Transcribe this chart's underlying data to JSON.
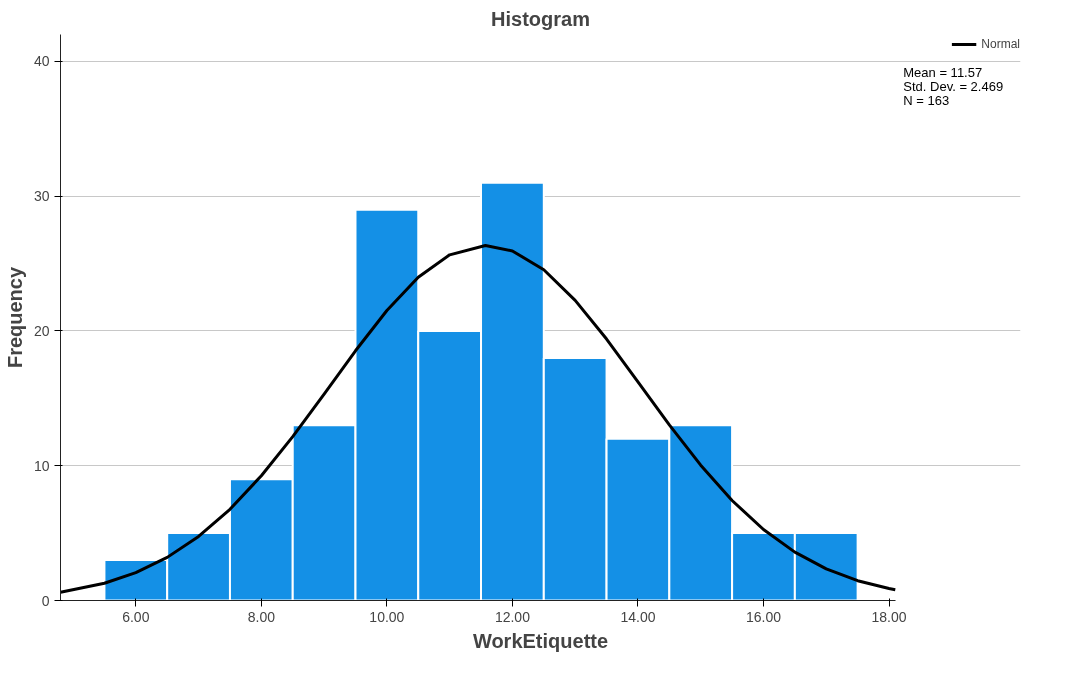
{
  "chart_data": {
    "type": "histogram",
    "title": "Histogram",
    "xlabel": "WorkEtiquette",
    "ylabel": "Frequency",
    "bins": [
      5.5,
      6.5,
      7.5,
      8.5,
      9.5,
      10.5,
      11.5,
      12.5,
      13.5,
      14.5,
      15.5,
      16.5,
      17.5
    ],
    "values": [
      3,
      5,
      9,
      13,
      29,
      20,
      31,
      18,
      12,
      13,
      5,
      5
    ],
    "color": "#1490e6",
    "series": [
      {
        "type": "line",
        "name": "Normal",
        "color": "#000000",
        "x": [
          4.8,
          5.5,
          6,
          6.5,
          7,
          7.5,
          8,
          8.5,
          9,
          9.5,
          10,
          10.5,
          11,
          11.57,
          12,
          12.5,
          13,
          13.5,
          14,
          14.5,
          15,
          15.5,
          16,
          16.5,
          17,
          17.5,
          18,
          18.1
        ],
        "values": [
          0.61,
          1.28,
          2.07,
          3.2,
          4.75,
          6.77,
          9.26,
          12.16,
          15.32,
          18.53,
          21.52,
          23.98,
          25.65,
          26.34,
          25.94,
          24.54,
          22.27,
          19.4,
          16.23,
          13.03,
          10.04,
          7.42,
          5.27,
          3.59,
          2.35,
          1.47,
          0.89,
          0.8
        ]
      }
    ],
    "annotations": [
      "Mean = 11.57",
      "Std. Dev. = 2.469",
      "N = 163"
    ],
    "xlim": [
      4.8,
      18.1
    ],
    "ylim": [
      0,
      42
    ],
    "xticks": [
      {
        "value": 6,
        "label": "6.00"
      },
      {
        "value": 8,
        "label": "8.00"
      },
      {
        "value": 10,
        "label": "10.00"
      },
      {
        "value": 12,
        "label": "12.00"
      },
      {
        "value": 14,
        "label": "14.00"
      },
      {
        "value": 16,
        "label": "16.00"
      },
      {
        "value": 18,
        "label": "18.00"
      }
    ],
    "yticks": [
      0,
      10,
      20,
      30,
      40
    ],
    "grid": "y",
    "legend": "top right",
    "line_style": "solid",
    "marker": "none"
  }
}
